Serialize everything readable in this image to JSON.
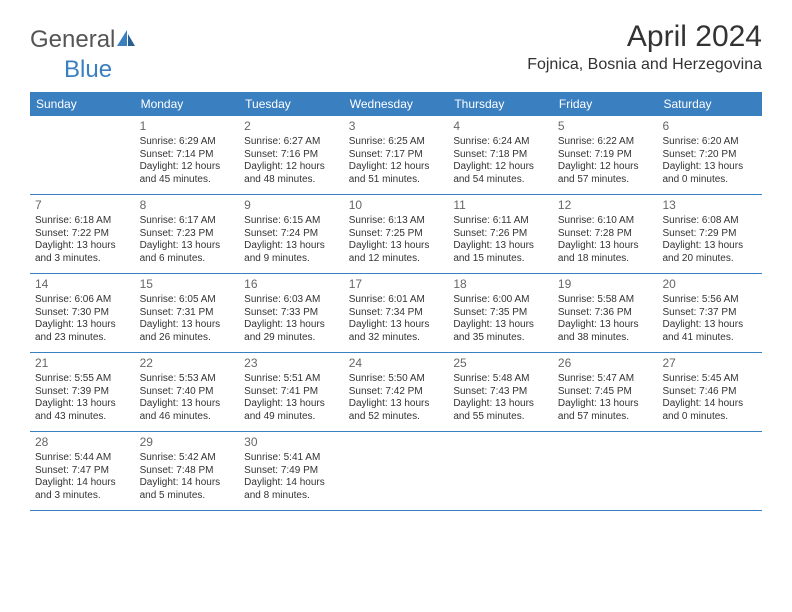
{
  "brand": {
    "part1": "General",
    "part2": "Blue"
  },
  "title": "April 2024",
  "location": "Fojnica, Bosnia and Herzegovina",
  "colors": {
    "header_bg": "#3a7fc0",
    "header_text": "#ffffff",
    "border": "#3a7fc0",
    "daynum": "#666666",
    "body_text": "#333333",
    "background": "#ffffff"
  },
  "day_names": [
    "Sunday",
    "Monday",
    "Tuesday",
    "Wednesday",
    "Thursday",
    "Friday",
    "Saturday"
  ],
  "weeks": [
    [
      null,
      {
        "n": "1",
        "sr": "Sunrise: 6:29 AM",
        "ss": "Sunset: 7:14 PM",
        "d1": "Daylight: 12 hours",
        "d2": "and 45 minutes."
      },
      {
        "n": "2",
        "sr": "Sunrise: 6:27 AM",
        "ss": "Sunset: 7:16 PM",
        "d1": "Daylight: 12 hours",
        "d2": "and 48 minutes."
      },
      {
        "n": "3",
        "sr": "Sunrise: 6:25 AM",
        "ss": "Sunset: 7:17 PM",
        "d1": "Daylight: 12 hours",
        "d2": "and 51 minutes."
      },
      {
        "n": "4",
        "sr": "Sunrise: 6:24 AM",
        "ss": "Sunset: 7:18 PM",
        "d1": "Daylight: 12 hours",
        "d2": "and 54 minutes."
      },
      {
        "n": "5",
        "sr": "Sunrise: 6:22 AM",
        "ss": "Sunset: 7:19 PM",
        "d1": "Daylight: 12 hours",
        "d2": "and 57 minutes."
      },
      {
        "n": "6",
        "sr": "Sunrise: 6:20 AM",
        "ss": "Sunset: 7:20 PM",
        "d1": "Daylight: 13 hours",
        "d2": "and 0 minutes."
      }
    ],
    [
      {
        "n": "7",
        "sr": "Sunrise: 6:18 AM",
        "ss": "Sunset: 7:22 PM",
        "d1": "Daylight: 13 hours",
        "d2": "and 3 minutes."
      },
      {
        "n": "8",
        "sr": "Sunrise: 6:17 AM",
        "ss": "Sunset: 7:23 PM",
        "d1": "Daylight: 13 hours",
        "d2": "and 6 minutes."
      },
      {
        "n": "9",
        "sr": "Sunrise: 6:15 AM",
        "ss": "Sunset: 7:24 PM",
        "d1": "Daylight: 13 hours",
        "d2": "and 9 minutes."
      },
      {
        "n": "10",
        "sr": "Sunrise: 6:13 AM",
        "ss": "Sunset: 7:25 PM",
        "d1": "Daylight: 13 hours",
        "d2": "and 12 minutes."
      },
      {
        "n": "11",
        "sr": "Sunrise: 6:11 AM",
        "ss": "Sunset: 7:26 PM",
        "d1": "Daylight: 13 hours",
        "d2": "and 15 minutes."
      },
      {
        "n": "12",
        "sr": "Sunrise: 6:10 AM",
        "ss": "Sunset: 7:28 PM",
        "d1": "Daylight: 13 hours",
        "d2": "and 18 minutes."
      },
      {
        "n": "13",
        "sr": "Sunrise: 6:08 AM",
        "ss": "Sunset: 7:29 PM",
        "d1": "Daylight: 13 hours",
        "d2": "and 20 minutes."
      }
    ],
    [
      {
        "n": "14",
        "sr": "Sunrise: 6:06 AM",
        "ss": "Sunset: 7:30 PM",
        "d1": "Daylight: 13 hours",
        "d2": "and 23 minutes."
      },
      {
        "n": "15",
        "sr": "Sunrise: 6:05 AM",
        "ss": "Sunset: 7:31 PM",
        "d1": "Daylight: 13 hours",
        "d2": "and 26 minutes."
      },
      {
        "n": "16",
        "sr": "Sunrise: 6:03 AM",
        "ss": "Sunset: 7:33 PM",
        "d1": "Daylight: 13 hours",
        "d2": "and 29 minutes."
      },
      {
        "n": "17",
        "sr": "Sunrise: 6:01 AM",
        "ss": "Sunset: 7:34 PM",
        "d1": "Daylight: 13 hours",
        "d2": "and 32 minutes."
      },
      {
        "n": "18",
        "sr": "Sunrise: 6:00 AM",
        "ss": "Sunset: 7:35 PM",
        "d1": "Daylight: 13 hours",
        "d2": "and 35 minutes."
      },
      {
        "n": "19",
        "sr": "Sunrise: 5:58 AM",
        "ss": "Sunset: 7:36 PM",
        "d1": "Daylight: 13 hours",
        "d2": "and 38 minutes."
      },
      {
        "n": "20",
        "sr": "Sunrise: 5:56 AM",
        "ss": "Sunset: 7:37 PM",
        "d1": "Daylight: 13 hours",
        "d2": "and 41 minutes."
      }
    ],
    [
      {
        "n": "21",
        "sr": "Sunrise: 5:55 AM",
        "ss": "Sunset: 7:39 PM",
        "d1": "Daylight: 13 hours",
        "d2": "and 43 minutes."
      },
      {
        "n": "22",
        "sr": "Sunrise: 5:53 AM",
        "ss": "Sunset: 7:40 PM",
        "d1": "Daylight: 13 hours",
        "d2": "and 46 minutes."
      },
      {
        "n": "23",
        "sr": "Sunrise: 5:51 AM",
        "ss": "Sunset: 7:41 PM",
        "d1": "Daylight: 13 hours",
        "d2": "and 49 minutes."
      },
      {
        "n": "24",
        "sr": "Sunrise: 5:50 AM",
        "ss": "Sunset: 7:42 PM",
        "d1": "Daylight: 13 hours",
        "d2": "and 52 minutes."
      },
      {
        "n": "25",
        "sr": "Sunrise: 5:48 AM",
        "ss": "Sunset: 7:43 PM",
        "d1": "Daylight: 13 hours",
        "d2": "and 55 minutes."
      },
      {
        "n": "26",
        "sr": "Sunrise: 5:47 AM",
        "ss": "Sunset: 7:45 PM",
        "d1": "Daylight: 13 hours",
        "d2": "and 57 minutes."
      },
      {
        "n": "27",
        "sr": "Sunrise: 5:45 AM",
        "ss": "Sunset: 7:46 PM",
        "d1": "Daylight: 14 hours",
        "d2": "and 0 minutes."
      }
    ],
    [
      {
        "n": "28",
        "sr": "Sunrise: 5:44 AM",
        "ss": "Sunset: 7:47 PM",
        "d1": "Daylight: 14 hours",
        "d2": "and 3 minutes."
      },
      {
        "n": "29",
        "sr": "Sunrise: 5:42 AM",
        "ss": "Sunset: 7:48 PM",
        "d1": "Daylight: 14 hours",
        "d2": "and 5 minutes."
      },
      {
        "n": "30",
        "sr": "Sunrise: 5:41 AM",
        "ss": "Sunset: 7:49 PM",
        "d1": "Daylight: 14 hours",
        "d2": "and 8 minutes."
      },
      null,
      null,
      null,
      null
    ]
  ]
}
